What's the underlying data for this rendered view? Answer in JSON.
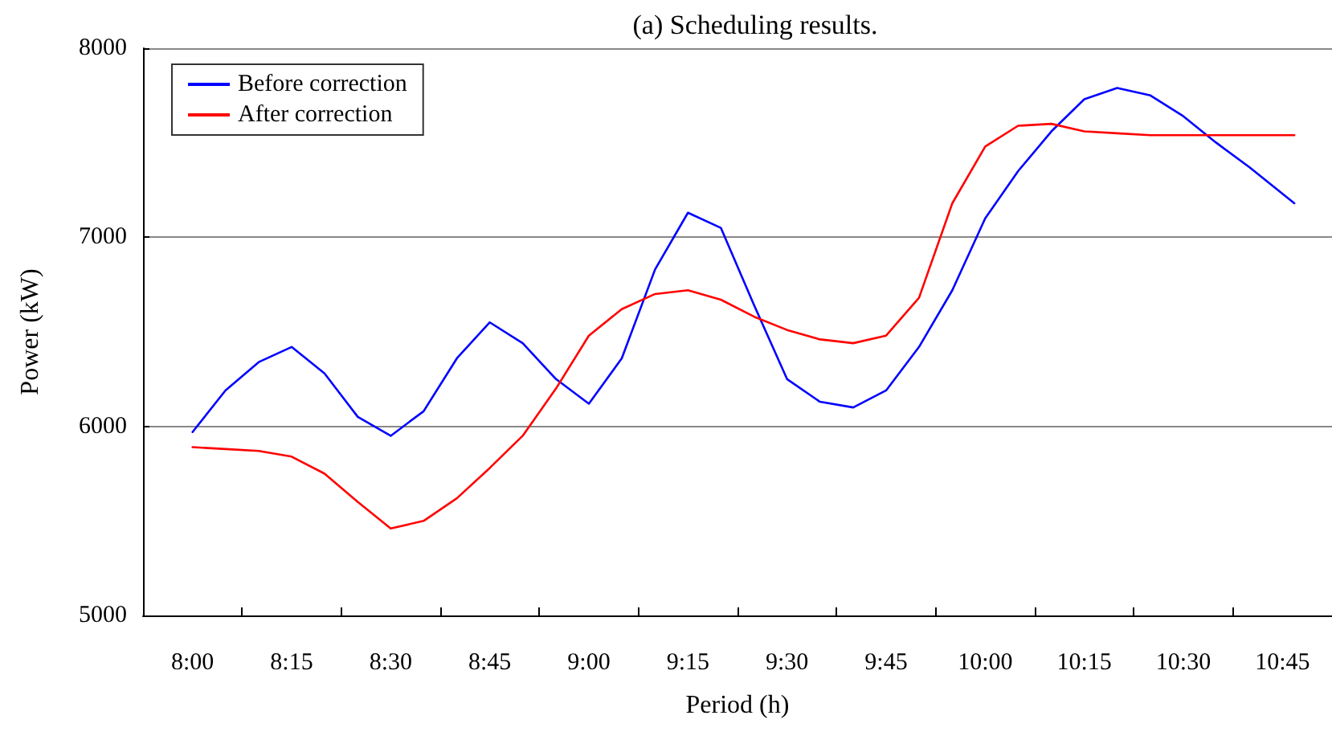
{
  "chart_data": {
    "type": "line",
    "title": "(a) Scheduling results.",
    "xlabel": "Period (h)",
    "ylabel": "Power (kW)",
    "x": [
      8,
      8.083,
      8.167,
      8.25,
      8.333,
      8.417,
      8.5,
      8.583,
      8.667,
      8.75,
      8.833,
      8.917,
      9,
      9.083,
      9.167,
      9.25,
      9.333,
      9.417,
      9.5,
      9.583,
      9.667,
      9.75,
      9.833,
      9.917,
      10,
      10.083,
      10.167,
      10.25,
      10.333,
      10.417,
      10.5,
      10.583,
      10.667,
      10.78
    ],
    "series": [
      {
        "name": "Before correction",
        "color": "#0000ff",
        "values": [
          5970,
          6190,
          6340,
          6420,
          6280,
          6050,
          5950,
          6080,
          6360,
          6550,
          6440,
          6250,
          6120,
          6360,
          6830,
          7130,
          7050,
          6640,
          6250,
          6130,
          6100,
          6190,
          6420,
          6720,
          7100,
          7350,
          7560,
          7730,
          7790,
          7750,
          7640,
          7500,
          7370,
          7180
        ]
      },
      {
        "name": "After correction",
        "color": "#ff0000",
        "values": [
          5890,
          5880,
          5870,
          5840,
          5750,
          5600,
          5460,
          5500,
          5620,
          5780,
          5950,
          6200,
          6480,
          6620,
          6700,
          6720,
          6670,
          6580,
          6510,
          6460,
          6440,
          6480,
          6680,
          7180,
          7480,
          7590,
          7600,
          7560,
          7550,
          7540,
          7540,
          7540,
          7540,
          7540
        ]
      }
    ],
    "xlim": [
      7.875,
      10.875
    ],
    "xticks": [
      {
        "value": 8,
        "label": "8:00"
      },
      {
        "value": 8.25,
        "label": "8:15"
      },
      {
        "value": 8.5,
        "label": "8:30"
      },
      {
        "value": 8.75,
        "label": "8:45"
      },
      {
        "value": 9,
        "label": "9:00"
      },
      {
        "value": 9.25,
        "label": "9:15"
      },
      {
        "value": 9.5,
        "label": "9:30"
      },
      {
        "value": 9.75,
        "label": "9:45"
      },
      {
        "value": 10,
        "label": "10:00"
      },
      {
        "value": 10.25,
        "label": "10:15"
      },
      {
        "value": 10.5,
        "label": "10:30"
      },
      {
        "value": 10.75,
        "label": "10:45"
      },
      {
        "value": 8.125,
        "label": null
      },
      {
        "value": 8.375,
        "label": null
      },
      {
        "value": 8.625,
        "label": null
      },
      {
        "value": 8.875,
        "label": null
      },
      {
        "value": 9.125,
        "label": null
      },
      {
        "value": 9.375,
        "label": null
      },
      {
        "value": 9.625,
        "label": null
      },
      {
        "value": 9.875,
        "label": null
      },
      {
        "value": 10.125,
        "label": null
      },
      {
        "value": 10.375,
        "label": null
      },
      {
        "value": 10.625,
        "label": null
      }
    ],
    "ylim": [
      5000,
      8000
    ],
    "yticks": [
      5000,
      6000,
      7000,
      8000
    ],
    "grid": "y",
    "legend": "top left",
    "marker": "none",
    "line_style": "solid"
  }
}
